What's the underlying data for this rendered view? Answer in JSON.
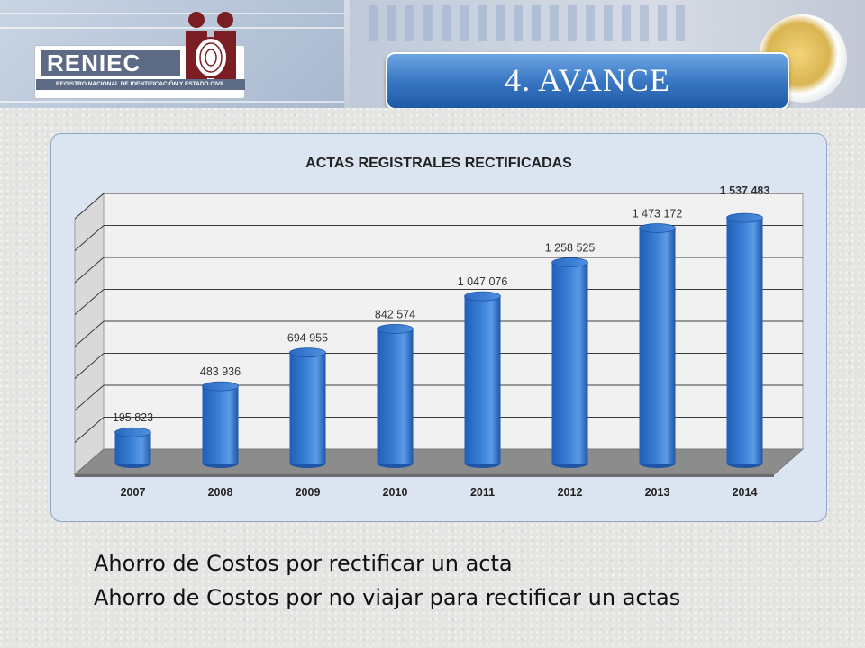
{
  "header": {
    "logo_name": "RENIEC",
    "logo_subtitle": "REGISTRO NACIONAL DE IDENTIFICACIÓN Y ESTADO CIVIL",
    "section_title": "4. AVANCE"
  },
  "chart_data": {
    "type": "bar",
    "title": "ACTAS REGISTRALES RECTIFICADAS",
    "categories": [
      "2007",
      "2008",
      "2009",
      "2010",
      "2011",
      "2012",
      "2013",
      "2014"
    ],
    "values": [
      195823,
      483936,
      694955,
      842574,
      1047076,
      1258525,
      1473172,
      1537483
    ],
    "value_labels": [
      "195 823",
      "483 936",
      "694 955",
      "842 574",
      "1 047 076",
      "1 258 525",
      "1 473 172",
      "1 537 483"
    ],
    "ylim": [
      0,
      1600000
    ],
    "grid": true,
    "legend": "none",
    "bar_color": "#3a7fd5",
    "xlabel": "",
    "ylabel": ""
  },
  "captions": [
    "Ahorro de Costos por rectificar un acta",
    "Ahorro de Costos por no viajar para rectificar un actas"
  ],
  "colors": {
    "accent": "#2f6bb8",
    "panel": "#dbe5f2"
  }
}
